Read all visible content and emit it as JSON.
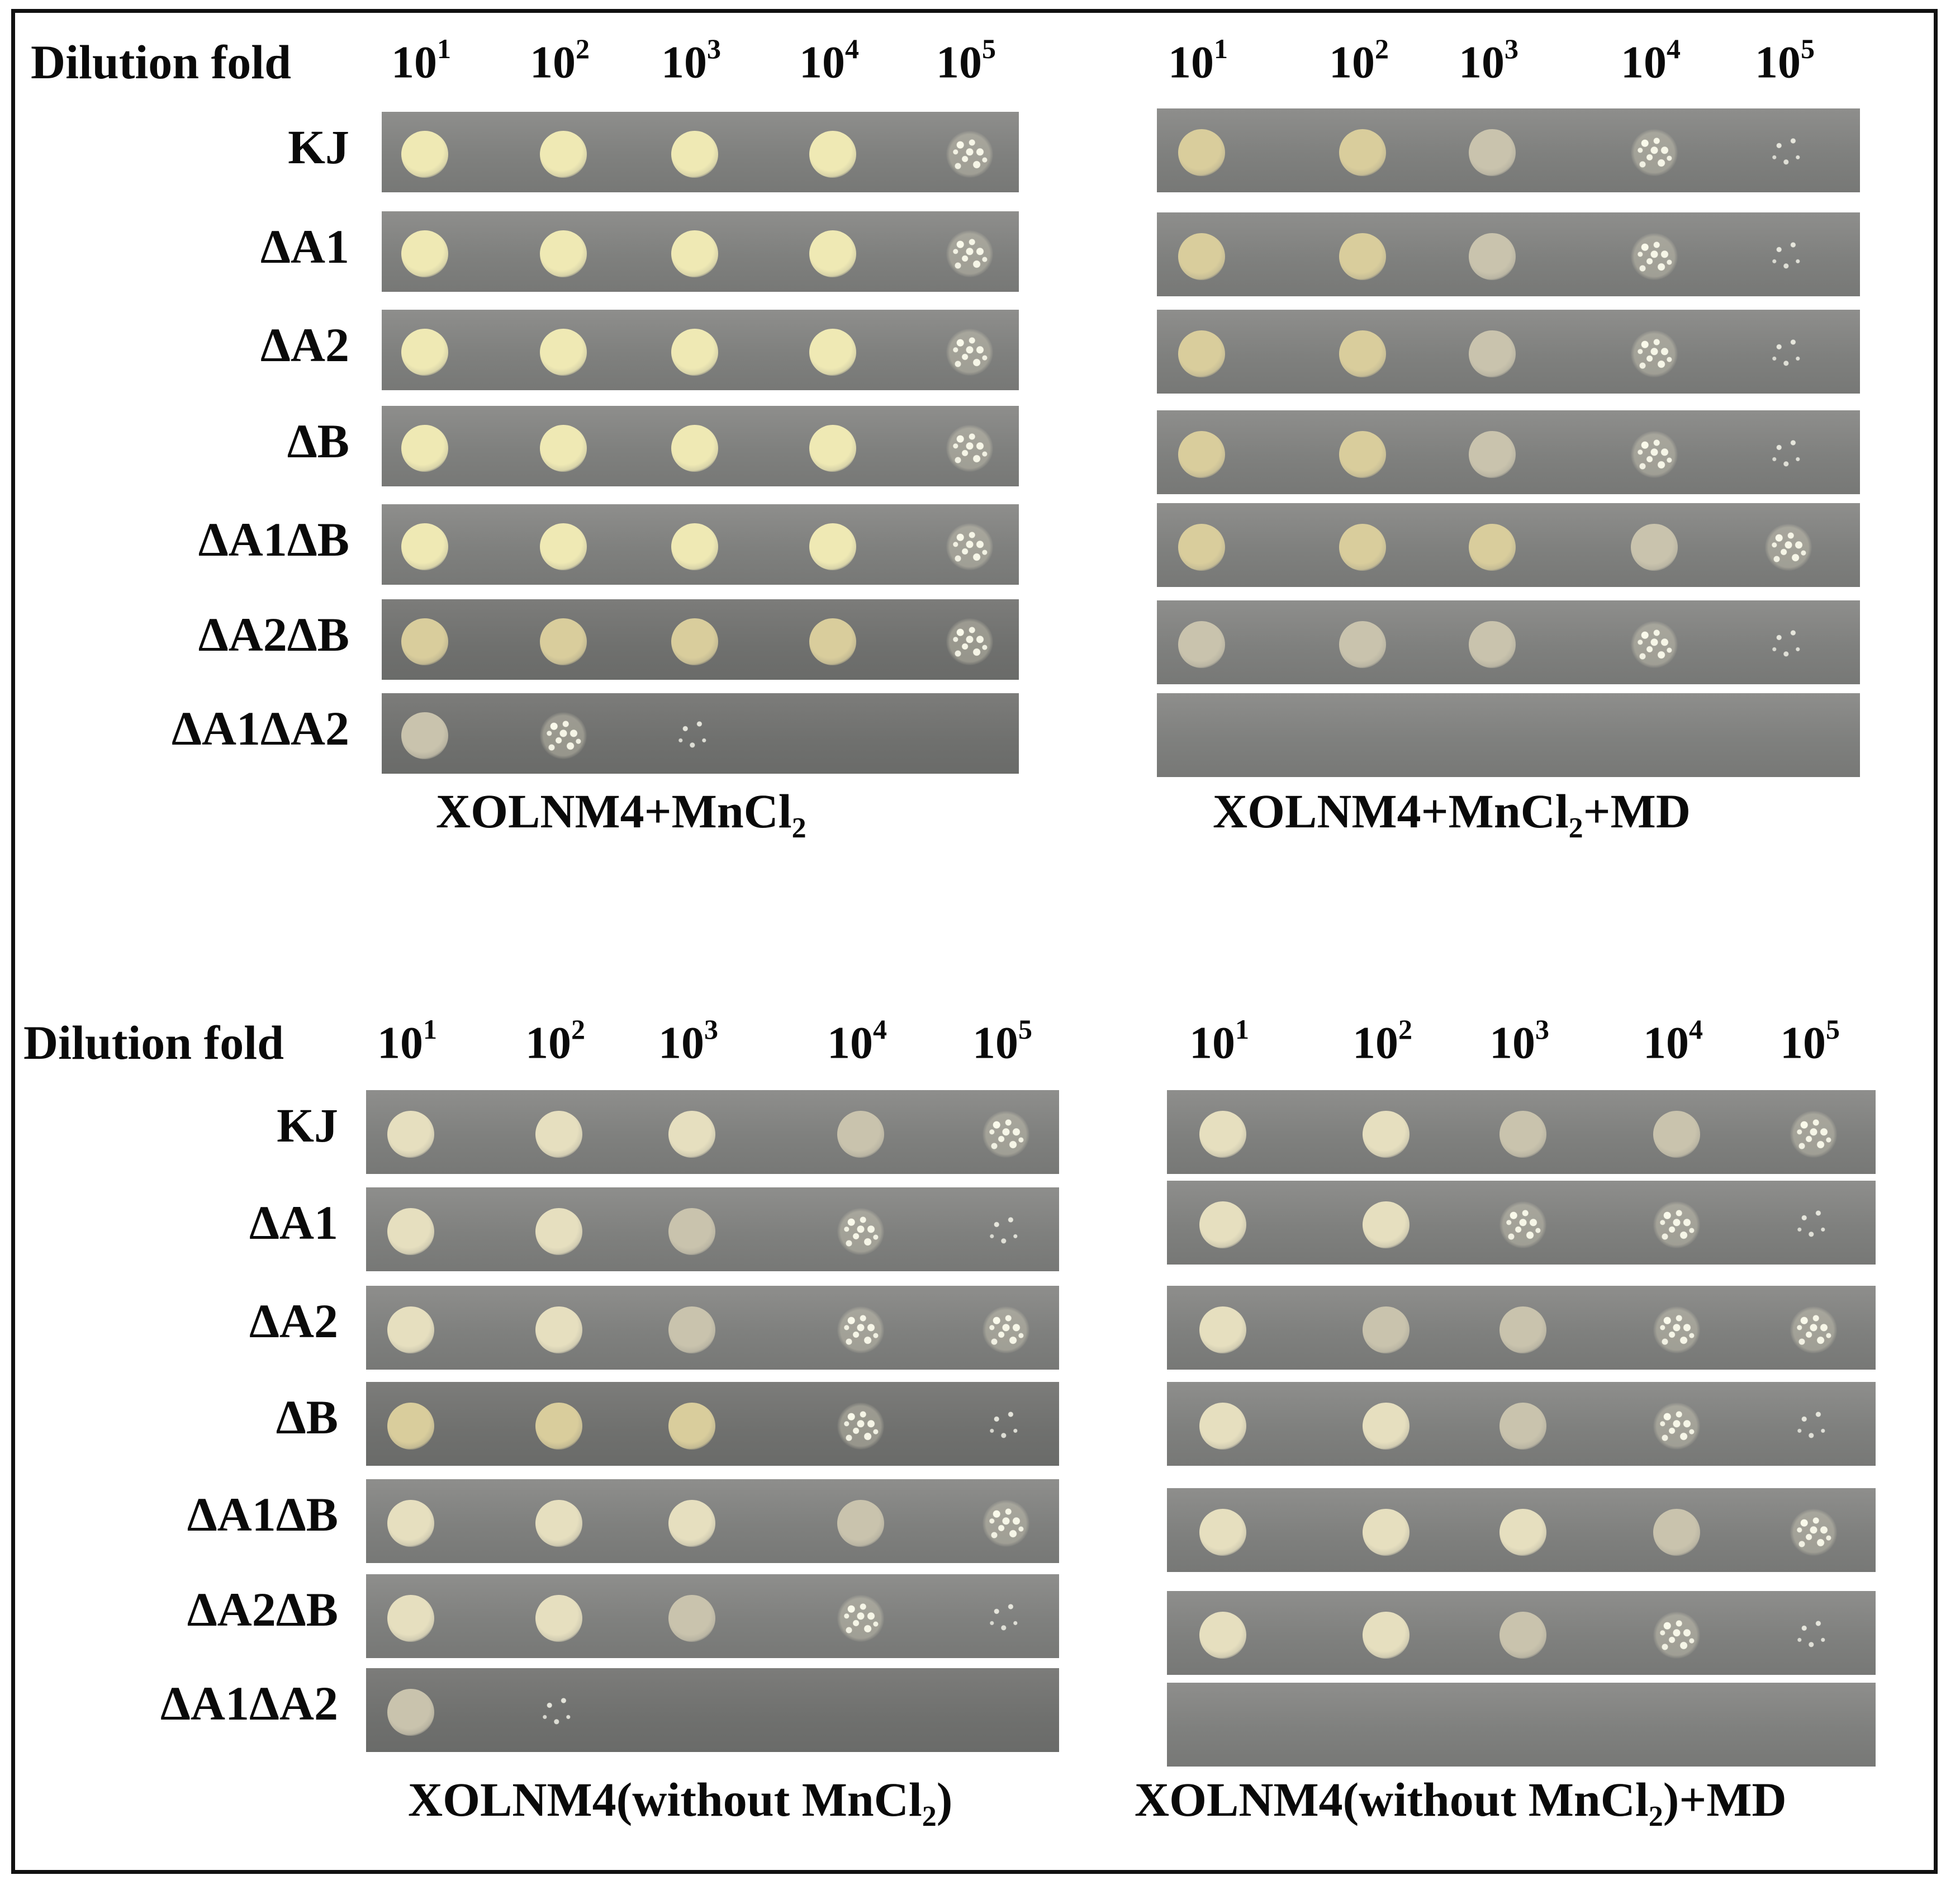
{
  "dilution_label": "Dilution fold",
  "dilutions": [
    {
      "base": "10",
      "exp": "1"
    },
    {
      "base": "10",
      "exp": "2"
    },
    {
      "base": "10",
      "exp": "3"
    },
    {
      "base": "10",
      "exp": "4"
    },
    {
      "base": "10",
      "exp": "5"
    }
  ],
  "strains": [
    "KJ",
    "ΔA1",
    "ΔA2",
    "ΔB",
    "ΔA1ΔB",
    "ΔA2ΔB",
    "ΔA1ΔA2"
  ],
  "panels": [
    {
      "caption": {
        "pre": "XOLNM4+MnCl",
        "sub": "2",
        "post": ""
      },
      "growth": [
        [
          "solid-yellow",
          "solid-yellow",
          "solid-yellow",
          "solid-yellow",
          "speckle"
        ],
        [
          "solid-yellow",
          "solid-yellow",
          "solid-yellow",
          "solid-yellow",
          "speckle"
        ],
        [
          "solid-yellow",
          "solid-yellow",
          "solid-yellow",
          "solid-yellow",
          "speckle"
        ],
        [
          "solid-yellow",
          "solid-yellow",
          "solid-yellow",
          "solid-yellow",
          "speckle"
        ],
        [
          "solid-yellow",
          "solid-yellow",
          "solid-yellow",
          "solid-yellow",
          "speckle"
        ],
        [
          "solid-tan",
          "solid-tan",
          "solid-tan",
          "solid-tan",
          "speckle"
        ],
        [
          "solid-pale",
          "speckle",
          "sparse",
          "none",
          "none"
        ]
      ]
    },
    {
      "caption": {
        "pre": "XOLNM4+MnCl",
        "sub": "2",
        "post": "+MD"
      },
      "growth": [
        [
          "solid-tan",
          "solid-tan",
          "solid-pale",
          "speckle",
          "sparse"
        ],
        [
          "solid-tan",
          "solid-tan",
          "solid-pale",
          "speckle",
          "sparse"
        ],
        [
          "solid-tan",
          "solid-tan",
          "solid-pale",
          "speckle",
          "sparse"
        ],
        [
          "solid-tan",
          "solid-tan",
          "solid-pale",
          "speckle",
          "sparse"
        ],
        [
          "solid-tan",
          "solid-tan",
          "solid-tan",
          "solid-pale",
          "speckle"
        ],
        [
          "solid-pale",
          "solid-pale",
          "solid-pale",
          "speckle",
          "sparse"
        ],
        [
          "none",
          "none",
          "none",
          "none",
          "none"
        ]
      ]
    },
    {
      "caption": {
        "pre": "XOLNM4(without MnCl",
        "sub": "2",
        "post": ")"
      },
      "growth": [
        [
          "solid-cream",
          "solid-cream",
          "solid-cream",
          "solid-pale",
          "speckle"
        ],
        [
          "solid-cream",
          "solid-cream",
          "solid-pale",
          "speckle",
          "sparse"
        ],
        [
          "solid-cream",
          "solid-cream",
          "solid-pale",
          "speckle",
          "speckle"
        ],
        [
          "solid-tan",
          "solid-tan",
          "solid-tan",
          "speckle",
          "sparse"
        ],
        [
          "solid-cream",
          "solid-cream",
          "solid-cream",
          "solid-pale",
          "speckle"
        ],
        [
          "solid-cream",
          "solid-cream",
          "solid-pale",
          "speckle",
          "sparse"
        ],
        [
          "solid-pale",
          "sparse",
          "none",
          "none",
          "none"
        ]
      ]
    },
    {
      "caption": {
        "pre": "XOLNM4(without MnCl",
        "sub": "2",
        "post": ")+MD"
      },
      "growth": [
        [
          "solid-cream",
          "solid-cream",
          "solid-pale",
          "solid-pale",
          "speckle"
        ],
        [
          "solid-cream",
          "solid-cream",
          "speckle",
          "speckle",
          "sparse"
        ],
        [
          "solid-cream",
          "solid-pale",
          "solid-pale",
          "speckle",
          "speckle"
        ],
        [
          "solid-cream",
          "solid-cream",
          "solid-pale",
          "speckle",
          "sparse"
        ],
        [
          "solid-cream",
          "solid-cream",
          "solid-cream",
          "solid-pale",
          "speckle"
        ],
        [
          "solid-cream",
          "solid-cream",
          "solid-pale",
          "speckle",
          "sparse"
        ],
        [
          "none",
          "none",
          "none",
          "none",
          "none"
        ]
      ]
    }
  ],
  "colors": {
    "solid-yellow": "#efe9b4",
    "solid-tan": "#d9cd9c",
    "solid-cream": "#e6dfbf",
    "solid-pale": "#c9c3ad",
    "border": "#111111"
  }
}
